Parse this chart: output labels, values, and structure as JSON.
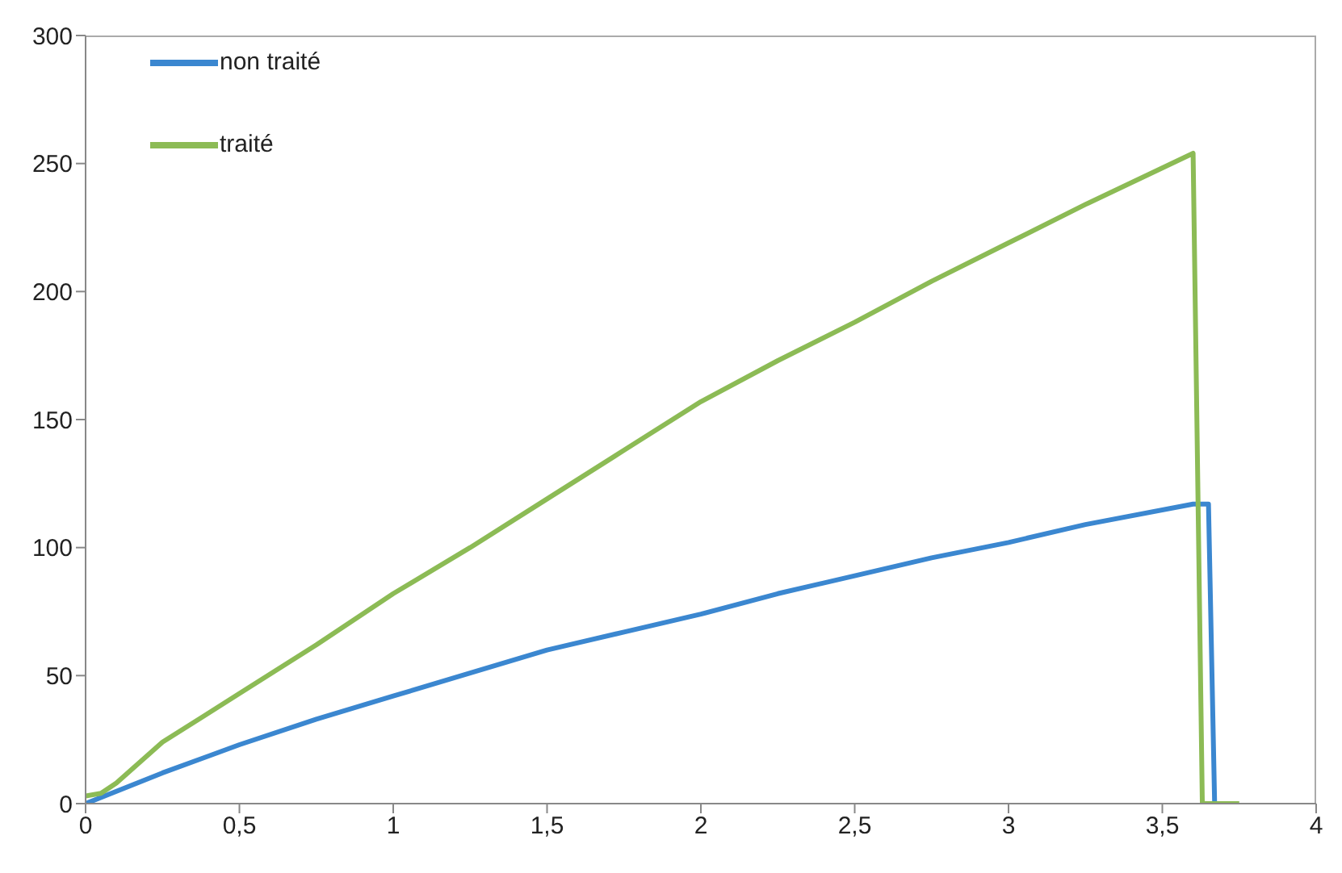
{
  "chart_data": {
    "type": "line",
    "xlim": [
      0,
      4
    ],
    "xticks": [
      0,
      {
        "value": 0.5,
        "label": "0,5"
      },
      1,
      {
        "value": 1.5,
        "label": "1,5"
      },
      2,
      {
        "value": 2.5,
        "label": "2,5"
      },
      3,
      {
        "value": 3.5,
        "label": "3,5"
      },
      4
    ],
    "ylim": [
      0,
      300
    ],
    "yticks": [
      0,
      50,
      100,
      150,
      200,
      250,
      300
    ],
    "legend": "top left",
    "marker": "none",
    "line_style": "solid",
    "series": [
      {
        "name": "non traité",
        "color": "#3b87d0",
        "x": [
          0,
          0.25,
          0.5,
          0.75,
          1,
          1.25,
          1.5,
          1.75,
          2,
          2.25,
          2.5,
          2.75,
          3,
          3.25,
          3.6,
          3.65,
          3.67,
          3.69
        ],
        "values": [
          0,
          12,
          23,
          33,
          42,
          51,
          60,
          67,
          74,
          82,
          89,
          96,
          102,
          109,
          117,
          117,
          0,
          0
        ]
      },
      {
        "name": "traité",
        "color": "#8cbb55",
        "x": [
          0,
          0.05,
          0.1,
          0.25,
          0.5,
          0.75,
          1,
          1.25,
          1.5,
          1.75,
          2,
          2.25,
          2.5,
          2.75,
          3,
          3.25,
          3.6,
          3.63,
          3.75
        ],
        "values": [
          3,
          4,
          8,
          24,
          43,
          62,
          82,
          100,
          119,
          138,
          157,
          173,
          188,
          204,
          219,
          234,
          254,
          0,
          0
        ]
      }
    ]
  }
}
